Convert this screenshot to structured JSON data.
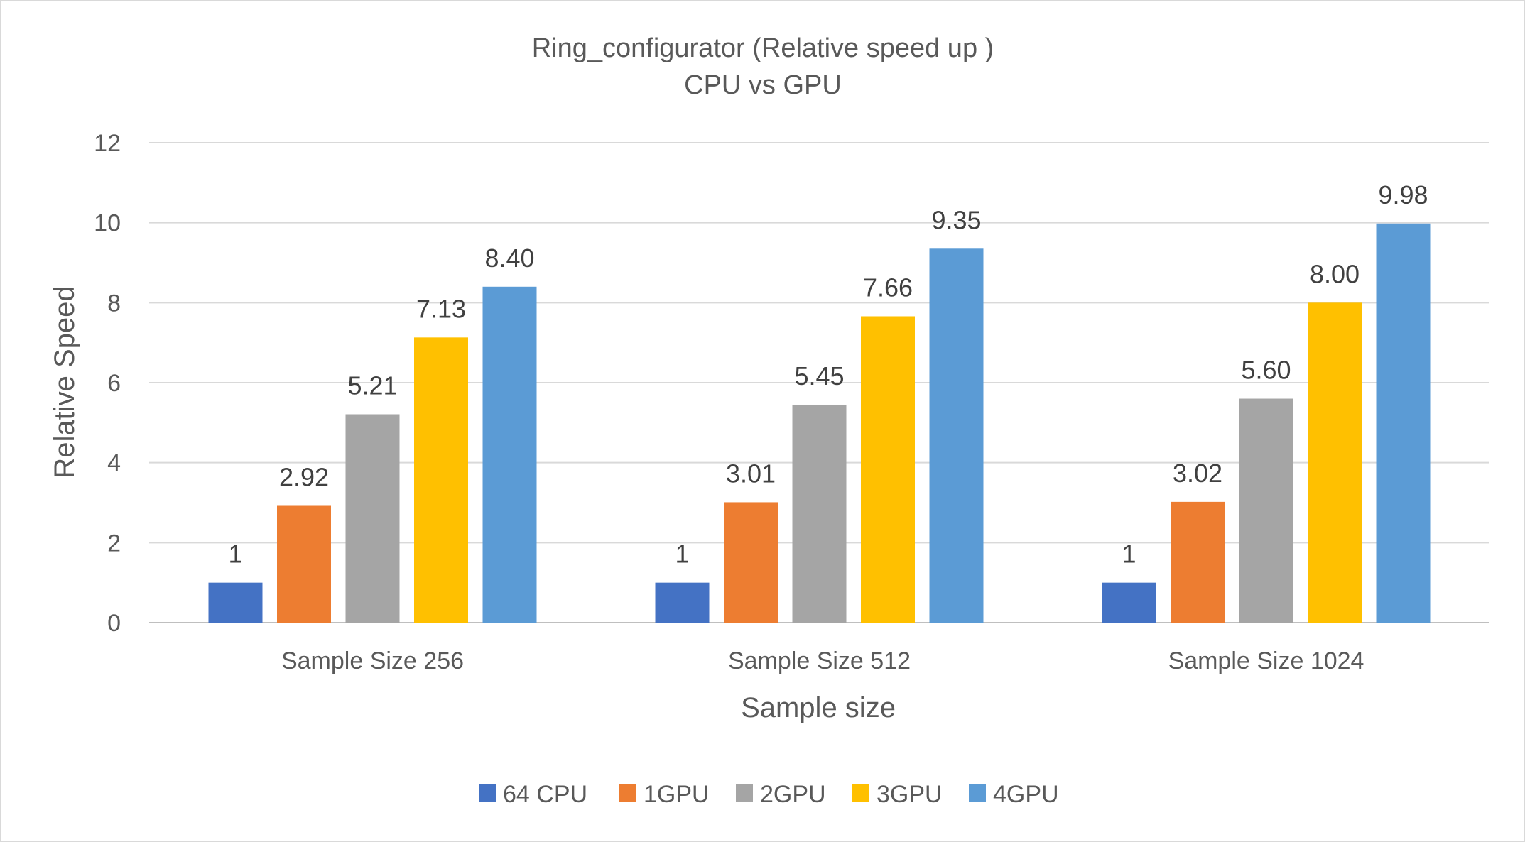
{
  "chart_data": {
    "type": "bar",
    "title": "Ring_configurator (Relative speed up )",
    "subtitle": "CPU vs GPU",
    "xlabel": "Sample size",
    "ylabel": "Relative Speed",
    "ylim": [
      0,
      12
    ],
    "yticks": [
      "0",
      "2",
      "4",
      "6",
      "8",
      "10",
      "12"
    ],
    "grid": true,
    "legend_position": "bottom",
    "categories": [
      "Sample Size 256",
      "Sample Size 512",
      "Sample Size 1024"
    ],
    "series": [
      {
        "name": "64 CPU",
        "color": "#4472C4",
        "values": [
          1,
          1,
          1
        ],
        "labels": [
          "1",
          "1",
          "1"
        ]
      },
      {
        "name": "1GPU",
        "color": "#ED7D31",
        "values": [
          2.92,
          3.01,
          3.02
        ],
        "labels": [
          "2.92",
          "3.01",
          "3.02"
        ]
      },
      {
        "name": "2GPU",
        "color": "#A5A5A5",
        "values": [
          5.21,
          5.45,
          5.6
        ],
        "labels": [
          "5.21",
          "5.45",
          "5.60"
        ]
      },
      {
        "name": "3GPU",
        "color": "#FFC000",
        "values": [
          7.13,
          7.66,
          8.0
        ],
        "labels": [
          "7.13",
          "7.66",
          "8.00"
        ]
      },
      {
        "name": "4GPU",
        "color": "#5B9BD5",
        "values": [
          8.4,
          9.35,
          9.98
        ],
        "labels": [
          "8.40",
          "9.35",
          "9.98"
        ]
      }
    ]
  }
}
